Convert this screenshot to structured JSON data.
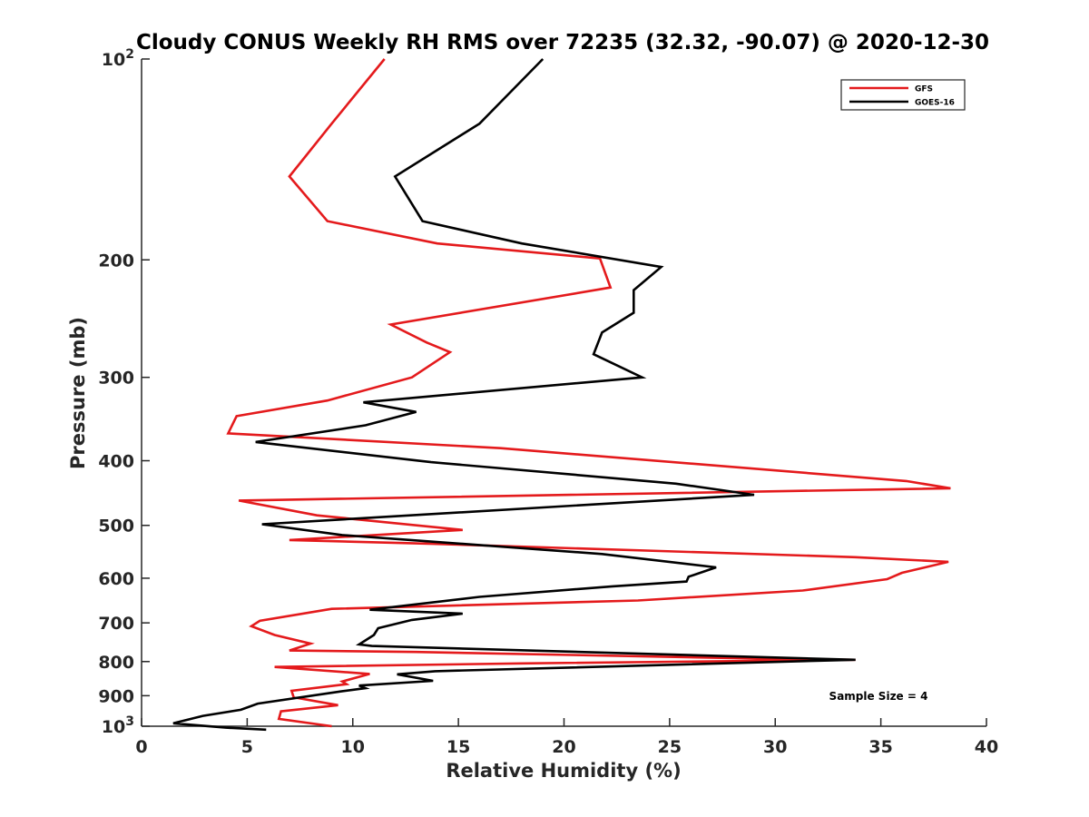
{
  "chart_data": {
    "type": "line",
    "title": "Cloudy CONUS Weekly RH RMS over 72235 (32.32, -90.07) @ 2020-12-30",
    "xlabel": "Relative Humidity (%)",
    "ylabel": "Pressure (mb)",
    "xlim": [
      0,
      40
    ],
    "ylim": [
      100,
      1000
    ],
    "yscale": "log",
    "yreversed": true,
    "xticks": [
      0,
      5,
      10,
      15,
      20,
      25,
      30,
      35,
      40
    ],
    "yticks": [
      {
        "value": 100,
        "base": "10",
        "exp": "2"
      },
      {
        "value": 200,
        "label": "200"
      },
      {
        "value": 300,
        "label": "300"
      },
      {
        "value": 400,
        "label": "400"
      },
      {
        "value": 500,
        "label": "500"
      },
      {
        "value": 600,
        "label": "600"
      },
      {
        "value": 700,
        "label": "700"
      },
      {
        "value": 800,
        "label": "800"
      },
      {
        "value": 900,
        "label": "900"
      },
      {
        "value": 1000,
        "base": "10",
        "exp": "3"
      }
    ],
    "grid": false,
    "legend_position": "top-right",
    "annotation": "Sample Size = 4",
    "series": [
      {
        "name": "GFS",
        "color": "#e41a1c",
        "points": [
          [
            11.5,
            100
          ],
          [
            9.0,
            125
          ],
          [
            7.0,
            150
          ],
          [
            8.8,
            175
          ],
          [
            14.0,
            189
          ],
          [
            21.7,
            199
          ],
          [
            22.2,
            220
          ],
          [
            11.8,
            250
          ],
          [
            13.5,
            266
          ],
          [
            14.6,
            275
          ],
          [
            12.8,
            300
          ],
          [
            8.8,
            325
          ],
          [
            4.5,
            343
          ],
          [
            4.1,
            364
          ],
          [
            17.0,
            383
          ],
          [
            36.2,
            429
          ],
          [
            38.3,
            440
          ],
          [
            4.6,
            459
          ],
          [
            8.3,
            483
          ],
          [
            15.2,
            508
          ],
          [
            7.0,
            526
          ],
          [
            13.8,
            533
          ],
          [
            33.8,
            558
          ],
          [
            38.2,
            567
          ],
          [
            36.0,
            589
          ],
          [
            35.3,
            602
          ],
          [
            31.3,
            626
          ],
          [
            23.5,
            648
          ],
          [
            9.0,
            667
          ],
          [
            5.6,
            695
          ],
          [
            5.2,
            708
          ],
          [
            6.3,
            730
          ],
          [
            8.0,
            752
          ],
          [
            7.0,
            770
          ],
          [
            13.0,
            774
          ],
          [
            30.3,
            793
          ],
          [
            33.8,
            795
          ],
          [
            18.0,
            805
          ],
          [
            6.3,
            815
          ],
          [
            10.8,
            835
          ],
          [
            9.5,
            857
          ],
          [
            9.7,
            865
          ],
          [
            7.1,
            885
          ],
          [
            7.2,
            905
          ],
          [
            9.3,
            930
          ],
          [
            6.6,
            950
          ],
          [
            6.5,
            975
          ],
          [
            9.0,
            1000
          ]
        ]
      },
      {
        "name": "GOES-16",
        "color": "#000000",
        "points": [
          [
            19.0,
            100
          ],
          [
            16.0,
            125
          ],
          [
            12.0,
            150
          ],
          [
            13.3,
            175
          ],
          [
            18.0,
            189
          ],
          [
            24.6,
            205
          ],
          [
            23.3,
            222
          ],
          [
            23.3,
            240
          ],
          [
            21.8,
            257
          ],
          [
            21.4,
            277
          ],
          [
            23.7,
            300
          ],
          [
            10.5,
            327
          ],
          [
            13.0,
            338
          ],
          [
            10.6,
            354
          ],
          [
            5.4,
            375
          ],
          [
            13.7,
            402
          ],
          [
            25.3,
            433
          ],
          [
            29.0,
            450
          ],
          [
            5.7,
            498
          ],
          [
            9.5,
            517
          ],
          [
            21.8,
            552
          ],
          [
            27.2,
            578
          ],
          [
            25.9,
            597
          ],
          [
            25.8,
            607
          ],
          [
            22.3,
            617
          ],
          [
            16.0,
            640
          ],
          [
            10.8,
            669
          ],
          [
            15.2,
            678
          ],
          [
            12.8,
            693
          ],
          [
            11.2,
            713
          ],
          [
            11.0,
            730
          ],
          [
            10.3,
            754
          ],
          [
            10.9,
            758
          ],
          [
            33.8,
            795
          ],
          [
            13.9,
            827
          ],
          [
            12.1,
            836
          ],
          [
            13.8,
            855
          ],
          [
            10.3,
            869
          ],
          [
            10.6,
            877
          ],
          [
            9.5,
            886
          ],
          [
            5.5,
            925
          ],
          [
            4.7,
            945
          ],
          [
            2.9,
            965
          ],
          [
            1.5,
            990
          ],
          [
            4.0,
            1005
          ],
          [
            5.9,
            1012
          ]
        ]
      }
    ]
  }
}
